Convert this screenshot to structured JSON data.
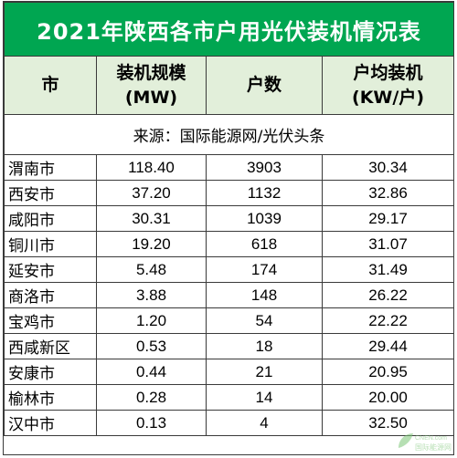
{
  "table": {
    "title": "2021年陕西各市户用光伏装机情况表",
    "title_bg": "#00a651",
    "header_bg": "#e2efda",
    "headers": [
      {
        "line1": "市",
        "line2": ""
      },
      {
        "line1": "装机规模",
        "line2": "(MW)"
      },
      {
        "line1": "户数",
        "line2": ""
      },
      {
        "line1": "户均装机",
        "line2": "(KW/户)"
      }
    ],
    "source": "来源：国际能源网/光伏头条",
    "rows": [
      {
        "city": "渭南市",
        "capacity": "118.40",
        "households": "3903",
        "avg": "30.34"
      },
      {
        "city": "西安市",
        "capacity": "37.20",
        "households": "1132",
        "avg": "32.86"
      },
      {
        "city": "咸阳市",
        "capacity": "30.31",
        "households": "1039",
        "avg": "29.17"
      },
      {
        "city": "铜川市",
        "capacity": "19.20",
        "households": "618",
        "avg": "31.07"
      },
      {
        "city": "延安市",
        "capacity": "5.48",
        "households": "174",
        "avg": "31.49"
      },
      {
        "city": "商洛市",
        "capacity": "3.88",
        "households": "148",
        "avg": "26.22"
      },
      {
        "city": "宝鸡市",
        "capacity": "1.20",
        "households": "54",
        "avg": "22.22"
      },
      {
        "city": "西咸新区",
        "capacity": "0.53",
        "households": "18",
        "avg": "29.44"
      },
      {
        "city": "安康市",
        "capacity": "0.44",
        "households": "21",
        "avg": "20.95"
      },
      {
        "city": "榆林市",
        "capacity": "0.28",
        "households": "14",
        "avg": "20.00"
      },
      {
        "city": "汉中市",
        "capacity": "0.13",
        "households": "4",
        "avg": "32.50"
      }
    ]
  },
  "watermark": {
    "text_top": "CNEN.com",
    "text_bottom": "国际能源网",
    "icon": "leaf-logo-icon",
    "color": "#7cc576"
  }
}
